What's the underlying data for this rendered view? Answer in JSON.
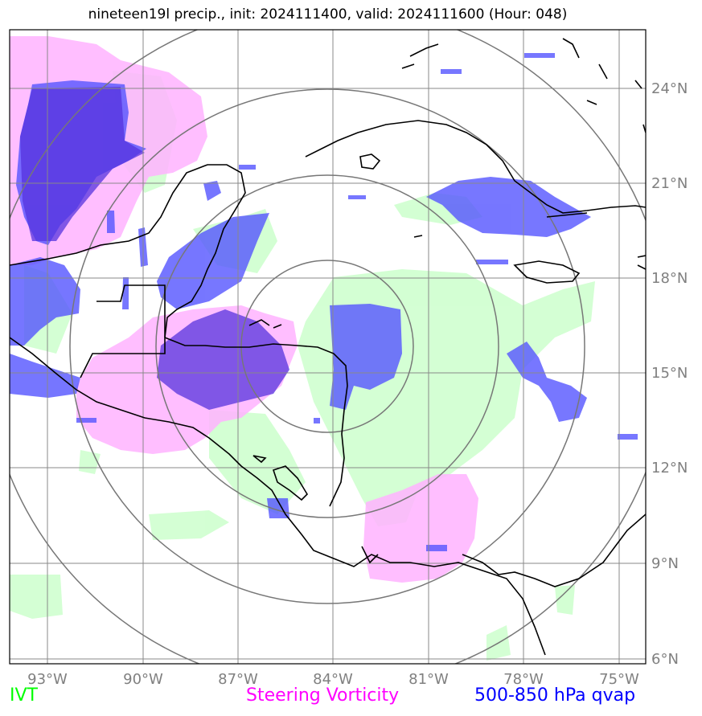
{
  "title": "nineteen19l precip., init: 2024111400, valid: 2024111600 (Hour: 048)",
  "longitude_labels": [
    "93°W",
    "90°W",
    "87°W",
    "84°W",
    "81°W",
    "78°W",
    "75°W"
  ],
  "latitude_labels": [
    "24°N",
    "21°N",
    "18°N",
    "15°N",
    "12°N",
    "9°N",
    "6°N"
  ],
  "legend": {
    "ivt": {
      "label": "IVT",
      "color": "#00ff00"
    },
    "vorticity": {
      "label": "Steering Vorticity",
      "color": "#ff00ff"
    },
    "qvap": {
      "label": "500-850 hPa qvap",
      "color": "#0000ff"
    }
  },
  "colors": {
    "ivt_fill": "#ccffcc",
    "vorticity_fill": "#ffb3ff",
    "qvap_fill": "#5555ff",
    "deep_overlap": "#5533dd",
    "grid": "#888888",
    "rings": "#777777",
    "coast": "#000000"
  }
}
